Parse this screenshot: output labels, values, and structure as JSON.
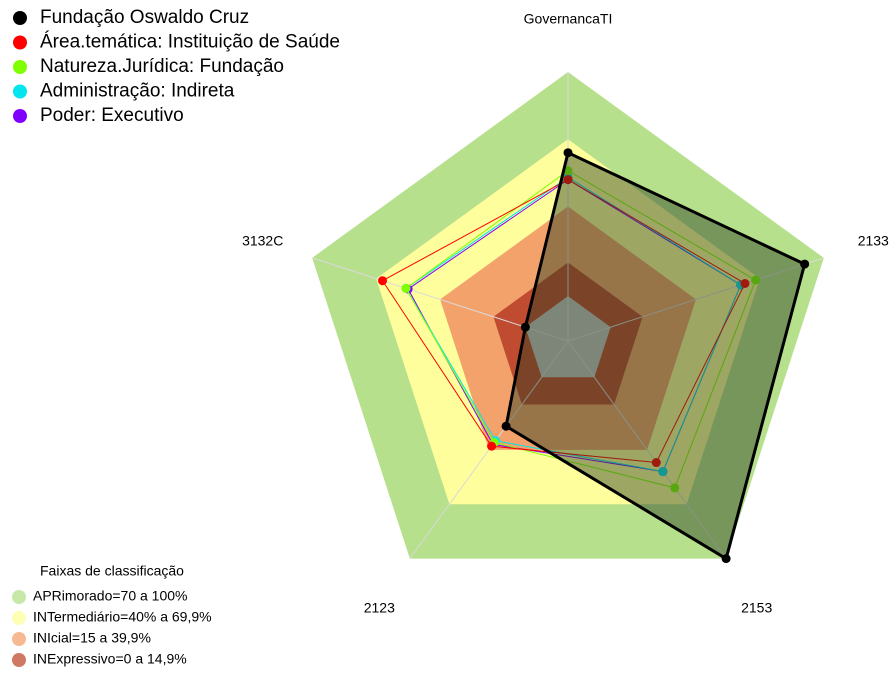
{
  "chart_data": {
    "type": "radar",
    "categories": [
      "GovernancaTI",
      "2133",
      "2153",
      "2123",
      "3132C"
    ],
    "ylim": [
      -20,
      100
    ],
    "legend_title": "Faixas de classificação",
    "bands": [
      {
        "label": "APRimorado=70 a 100%",
        "color": "#b6e08c",
        "from": 70,
        "to": 100
      },
      {
        "label": "INTermediário=40% a 69,9%",
        "color": "#fefe9c",
        "from": 40,
        "to": 70
      },
      {
        "label": "INIcial=15 a 39,9%",
        "color": "#f4a26c",
        "from": 15,
        "to": 40
      },
      {
        "label": "INExpressivo=0 a 14,9%",
        "color": "#bf4b30",
        "from": 0,
        "to": 15
      }
    ],
    "series": [
      {
        "name": "Fundação Oswaldo Cruz",
        "color": "#000000",
        "values": [
          64,
          91,
          100,
          27,
          0
        ]
      },
      {
        "name": "Área.temática: Instituição de Saúde",
        "color": "#ff0000",
        "values": [
          52,
          63,
          47,
          38,
          67
        ]
      },
      {
        "name": "Natureza.Jurídica: Fundação",
        "color": "#7fff00",
        "values": [
          56,
          68,
          61,
          36,
          56
        ]
      },
      {
        "name": "Administração: Indireta",
        "color": "#00e5ee",
        "values": [
          53,
          61,
          52,
          35,
          56
        ]
      },
      {
        "name": "Poder: Executivo",
        "color": "#8000ff",
        "values": [
          52,
          61,
          52,
          37,
          55
        ]
      }
    ]
  }
}
